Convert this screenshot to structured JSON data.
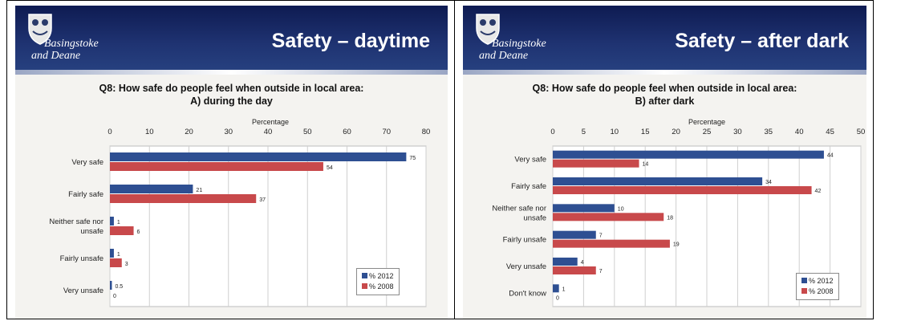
{
  "logo": {
    "line1": "Basingstoke",
    "line2": "and Deane"
  },
  "colors": {
    "series_2012": "#2e4f92",
    "series_2008": "#c8494b"
  },
  "slides": [
    {
      "title": "Safety – daytime",
      "question_line1": "Q8: How safe do people feel when outside in local area:",
      "question_line2": "A) during the day",
      "chart_data": {
        "type": "bar",
        "orientation": "horizontal",
        "xlabel": "Percentage",
        "xlim": [
          0,
          80
        ],
        "ticks": [
          0,
          10,
          20,
          30,
          40,
          50,
          60,
          70,
          80
        ],
        "grid": true,
        "legend_position": "bottom-right",
        "categories": [
          "Very safe",
          "Fairly safe",
          "Neither safe nor unsafe",
          "Fairly unsafe",
          "Very unsafe"
        ],
        "category_lines": [
          [
            "Very safe"
          ],
          [
            "Fairly safe"
          ],
          [
            "Neither safe nor",
            "unsafe"
          ],
          [
            "Fairly unsafe"
          ],
          [
            "Very unsafe"
          ]
        ],
        "series": [
          {
            "name": "% 2012",
            "values": [
              75,
              21,
              1,
              1,
              0.5
            ]
          },
          {
            "name": "% 2008",
            "values": [
              54,
              37,
              6,
              3,
              0
            ]
          }
        ]
      }
    },
    {
      "title": "Safety – after dark",
      "question_line1": "Q8: How safe do people feel when outside in local area:",
      "question_line2": "B) after dark",
      "chart_data": {
        "type": "bar",
        "orientation": "horizontal",
        "xlabel": "Percentage",
        "xlim": [
          0,
          50
        ],
        "ticks": [
          0,
          5,
          10,
          15,
          20,
          25,
          30,
          35,
          40,
          45,
          50
        ],
        "grid": true,
        "legend_position": "bottom-right",
        "categories": [
          "Very safe",
          "Fairly safe",
          "Neither safe nor unsafe",
          "Fairly unsafe",
          "Very unsafe",
          "Don't know"
        ],
        "category_lines": [
          [
            "Very safe"
          ],
          [
            "Fairly safe"
          ],
          [
            "Neither safe nor",
            "unsafe"
          ],
          [
            "Fairly unsafe"
          ],
          [
            "Very unsafe"
          ],
          [
            "Don't know"
          ]
        ],
        "series": [
          {
            "name": "% 2012",
            "values": [
              44,
              34,
              10,
              7,
              4,
              1
            ]
          },
          {
            "name": "% 2008",
            "values": [
              14,
              42,
              18,
              19,
              7,
              0
            ]
          }
        ]
      }
    }
  ]
}
